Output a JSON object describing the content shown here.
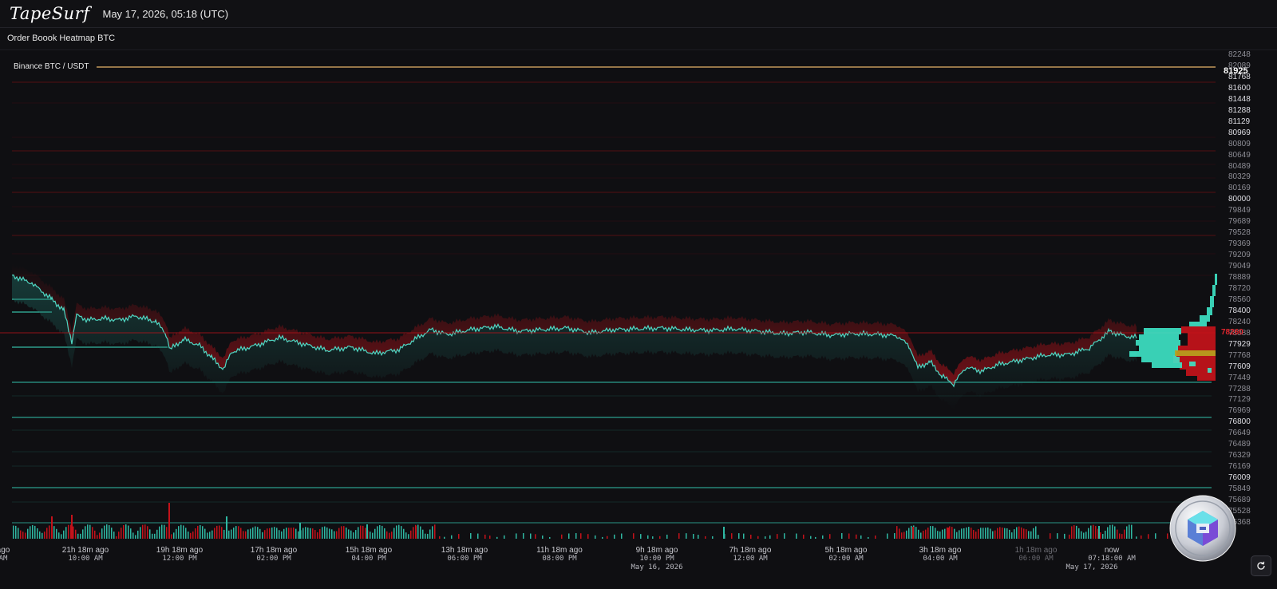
{
  "header": {
    "logo": "TapeSurf",
    "datetime": "May 17, 2026, 05:18 (UTC)"
  },
  "page": {
    "title": "Order Boook Heatmap BTC"
  },
  "chart": {
    "pair_label": "Binance BTC / USDT",
    "last_price": "81925",
    "current_price_marker": "78260",
    "y_axis_labels": [
      "82248",
      "82089",
      "81768",
      "81600",
      "81448",
      "81288",
      "81129",
      "80969",
      "80809",
      "80649",
      "80489",
      "80329",
      "80169",
      "80000",
      "79849",
      "79689",
      "79528",
      "79369",
      "79209",
      "79049",
      "78889",
      "78720",
      "78560",
      "78400",
      "78240",
      "78088",
      "77929",
      "77768",
      "77609",
      "77449",
      "77288",
      "77129",
      "76969",
      "76800",
      "76649",
      "76489",
      "76329",
      "76169",
      "76009",
      "75849",
      "75689",
      "75528",
      "75368"
    ],
    "x_axis_labels": [
      {
        "top": "ago",
        "bottom": "AM"
      },
      {
        "top": "21h 18m ago",
        "bottom": "10:00 AM"
      },
      {
        "top": "19h 18m ago",
        "bottom": "12:00 PM"
      },
      {
        "top": "17h 18m ago",
        "bottom": "02:00 PM"
      },
      {
        "top": "15h 18m ago",
        "bottom": "04:00 PM"
      },
      {
        "top": "13h 18m ago",
        "bottom": "06:00 PM"
      },
      {
        "top": "11h 18m ago",
        "bottom": "08:00 PM"
      },
      {
        "top": "9h 18m ago",
        "bottom": "10:00 PM"
      },
      {
        "top": "7h 18m ago",
        "bottom": "12:00 AM"
      },
      {
        "top": "5h 18m ago",
        "bottom": "02:00 AM"
      },
      {
        "top": "3h 18m ago",
        "bottom": "04:00 AM"
      },
      {
        "top": "1h 18m ago",
        "bottom": "06:00 AM"
      },
      {
        "top": "now",
        "bottom": "07:18:00 AM"
      }
    ],
    "date_labels": [
      "May 16, 2026",
      "May 17, 2026"
    ],
    "colors": {
      "background": "#0f0f12",
      "bid": "#3ee6c8",
      "ask": "#c4121a",
      "last_price_line": "#e8b36a",
      "highlight_bar": "#b8a41e"
    }
  },
  "icons": {
    "coin": "coin-logo-icon",
    "reset": "refresh-icon"
  }
}
